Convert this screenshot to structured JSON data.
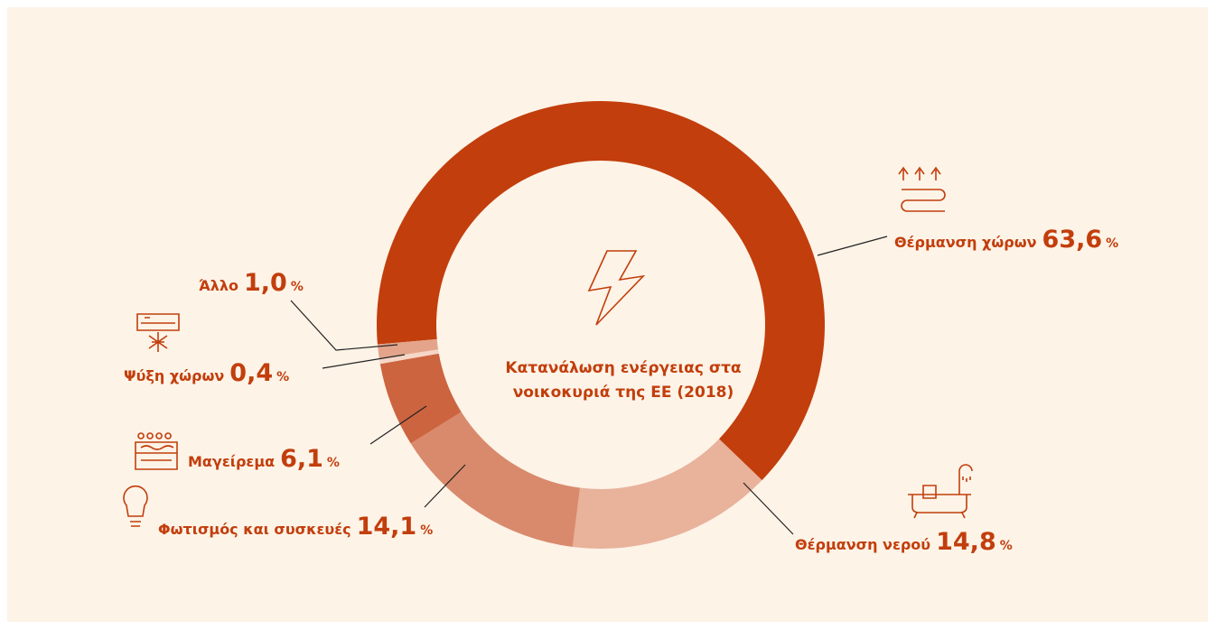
{
  "chart_data": {
    "type": "donut",
    "title": "Κατανάλωση ενέργειας στα νοικοκυριά της ΕΕ (2018)",
    "categories": [
      "Θέρμανση χώρων",
      "Θέρμανση νερού",
      "Φωτισμός και συσκευές",
      "Μαγείρεμα",
      "Ψύξη χώρων",
      "Άλλο"
    ],
    "values": [
      63.6,
      14.8,
      14.1,
      6.1,
      0.4,
      1.0
    ],
    "value_labels": [
      "63,6",
      "14,8",
      "14,1",
      "6,1",
      "0,4",
      "1,0"
    ],
    "unit": "%",
    "colors": [
      "#c23e0c",
      "#e8b29b",
      "#d98a6c",
      "#cc6440",
      "#f6d6c6",
      "#e3a48b"
    ]
  }
}
